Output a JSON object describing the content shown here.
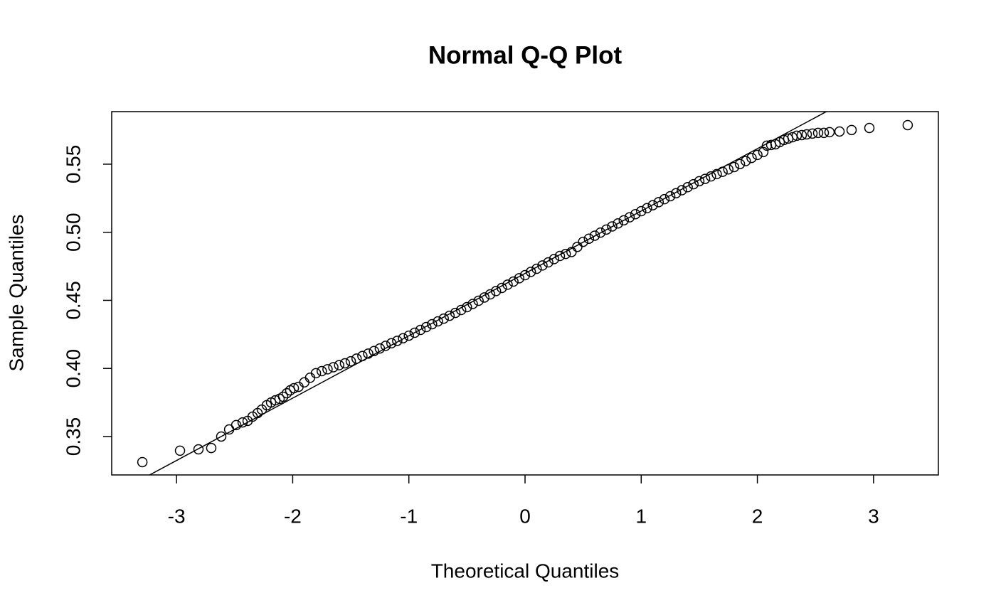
{
  "chart_data": {
    "type": "scatter",
    "title": "Normal Q-Q Plot",
    "x_label": "Theoretical Quantiles",
    "y_label": "Sample Quantiles",
    "xlim": [
      -3.558,
      3.558
    ],
    "ylim": [
      0.3218,
      0.5886
    ],
    "xticks": [
      -3,
      -2,
      -1,
      0,
      1,
      2,
      3
    ],
    "yticks": [
      0.35,
      {
        "value": 0.4,
        "label": "0.40"
      },
      0.45,
      {
        "value": 0.5,
        "label": "0.50"
      },
      0.55
    ],
    "color": "#000000",
    "reference_line": {
      "intercept": 0.4698,
      "slope": 0.0458
    },
    "x": [
      -3.294,
      -2.97,
      -2.811,
      -2.701,
      -2.615,
      -2.547,
      -2.486,
      -2.431,
      -2.388,
      -2.345,
      -2.302,
      -2.266,
      -2.223,
      -2.186,
      -2.149,
      -2.113,
      -2.082,
      -2.051,
      -2.021,
      -1.99,
      -1.95,
      -1.9,
      -1.85,
      -1.8,
      -1.75,
      -1.7,
      -1.65,
      -1.6,
      -1.55,
      -1.5,
      -1.45,
      -1.4,
      -1.35,
      -1.3,
      -1.25,
      -1.2,
      -1.15,
      -1.1,
      -1.05,
      -1.0,
      -0.95,
      -0.9,
      -0.85,
      -0.8,
      -0.75,
      -0.7,
      -0.65,
      -0.6,
      -0.55,
      -0.5,
      -0.45,
      -0.4,
      -0.35,
      -0.3,
      -0.25,
      -0.2,
      -0.15,
      -0.1,
      -0.05,
      0,
      0.05,
      0.1,
      0.15,
      0.2,
      0.25,
      0.3,
      0.35,
      0.4,
      0.45,
      0.5,
      0.55,
      0.6,
      0.65,
      0.7,
      0.75,
      0.8,
      0.85,
      0.9,
      0.95,
      1.0,
      1.05,
      1.1,
      1.15,
      1.2,
      1.25,
      1.3,
      1.35,
      1.4,
      1.45,
      1.5,
      1.55,
      1.6,
      1.65,
      1.7,
      1.75,
      1.8,
      1.85,
      1.9,
      1.95,
      2.0,
      2.051,
      2.082,
      2.119,
      2.156,
      2.192,
      2.229,
      2.266,
      2.302,
      2.339,
      2.382,
      2.425,
      2.474,
      2.523,
      2.572,
      2.621,
      2.707,
      2.811,
      2.964,
      3.294
    ],
    "values": [
      0.3312,
      0.3396,
      0.3406,
      0.3416,
      0.35,
      0.3552,
      0.3584,
      0.3604,
      0.3615,
      0.3646,
      0.3672,
      0.3698,
      0.373,
      0.375,
      0.3766,
      0.3777,
      0.3792,
      0.3818,
      0.3839,
      0.3855,
      0.3865,
      0.3898,
      0.3932,
      0.3965,
      0.398,
      0.3994,
      0.4009,
      0.4024,
      0.4038,
      0.4053,
      0.4072,
      0.4091,
      0.4109,
      0.4128,
      0.4147,
      0.4166,
      0.4185,
      0.4203,
      0.4222,
      0.4241,
      0.4262,
      0.4283,
      0.4304,
      0.4325,
      0.4346,
      0.4366,
      0.4387,
      0.4408,
      0.4429,
      0.445,
      0.4474,
      0.4497,
      0.4521,
      0.4544,
      0.4568,
      0.4591,
      0.4615,
      0.4638,
      0.4662,
      0.4685,
      0.4709,
      0.4732,
      0.4756,
      0.4779,
      0.4803,
      0.4826,
      0.4841,
      0.4855,
      0.4893,
      0.493,
      0.4953,
      0.4975,
      0.4998,
      0.502,
      0.5043,
      0.5065,
      0.5088,
      0.511,
      0.5133,
      0.5155,
      0.5177,
      0.5199,
      0.5221,
      0.5243,
      0.5265,
      0.5287,
      0.5309,
      0.5331,
      0.5353,
      0.5375,
      0.5392,
      0.541,
      0.5427,
      0.5444,
      0.5462,
      0.5479,
      0.5501,
      0.5523,
      0.5546,
      0.5568,
      0.5589,
      0.5636,
      0.5641,
      0.5646,
      0.5662,
      0.5678,
      0.5688,
      0.5698,
      0.5709,
      0.5714,
      0.5719,
      0.5725,
      0.573,
      0.573,
      0.5735,
      0.574,
      0.5751,
      0.5766,
      0.5787
    ]
  }
}
